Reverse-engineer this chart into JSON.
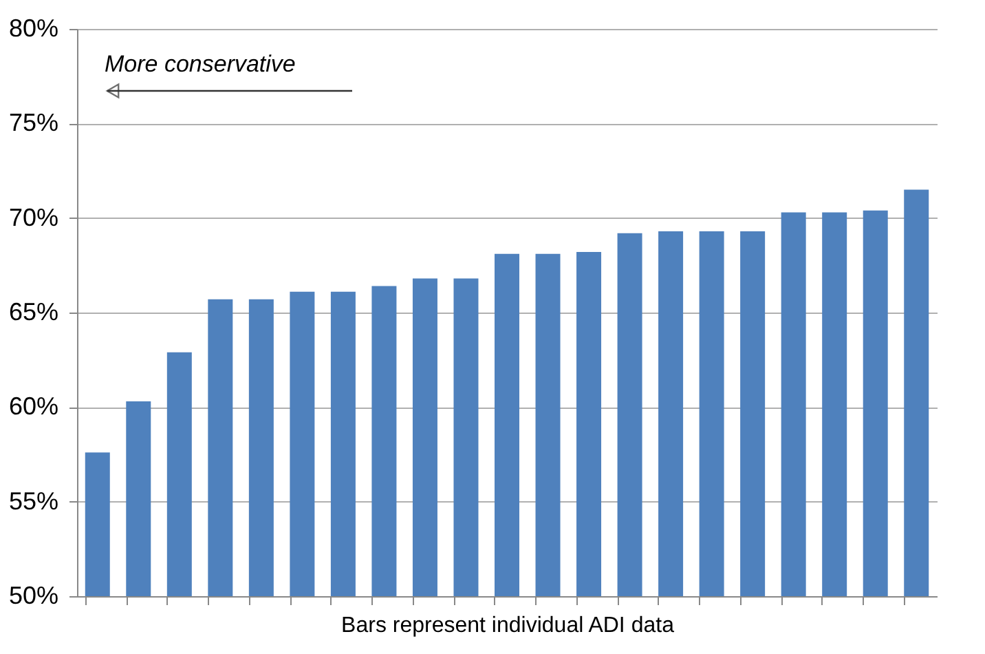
{
  "chart_data": {
    "type": "bar",
    "xlabel": "Bars represent individual ADI data",
    "categories": [
      null,
      null,
      null,
      null,
      null,
      null,
      null,
      null,
      null,
      null,
      null,
      null,
      null,
      null,
      null,
      null,
      null,
      null,
      null,
      null,
      null
    ],
    "values": [
      57.6,
      60.3,
      62.9,
      65.7,
      65.7,
      66.1,
      66.1,
      66.4,
      66.8,
      66.8,
      68.1,
      68.1,
      68.2,
      69.2,
      69.3,
      69.3,
      69.3,
      70.3,
      70.3,
      70.4,
      71.5
    ],
    "color": "#4f81bd",
    "ylim": [
      50,
      80
    ],
    "yticks": [
      {
        "value": 50,
        "label": "50%"
      },
      {
        "value": 55,
        "label": "55%"
      },
      {
        "value": 60,
        "label": "60%"
      },
      {
        "value": 65,
        "label": "65%"
      },
      {
        "value": 70,
        "label": "70%"
      },
      {
        "value": 75,
        "label": "75%"
      },
      {
        "value": 80,
        "label": "80%"
      }
    ],
    "grid": "y",
    "tick_labels": "y",
    "annotations": [
      "More conservative"
    ]
  }
}
